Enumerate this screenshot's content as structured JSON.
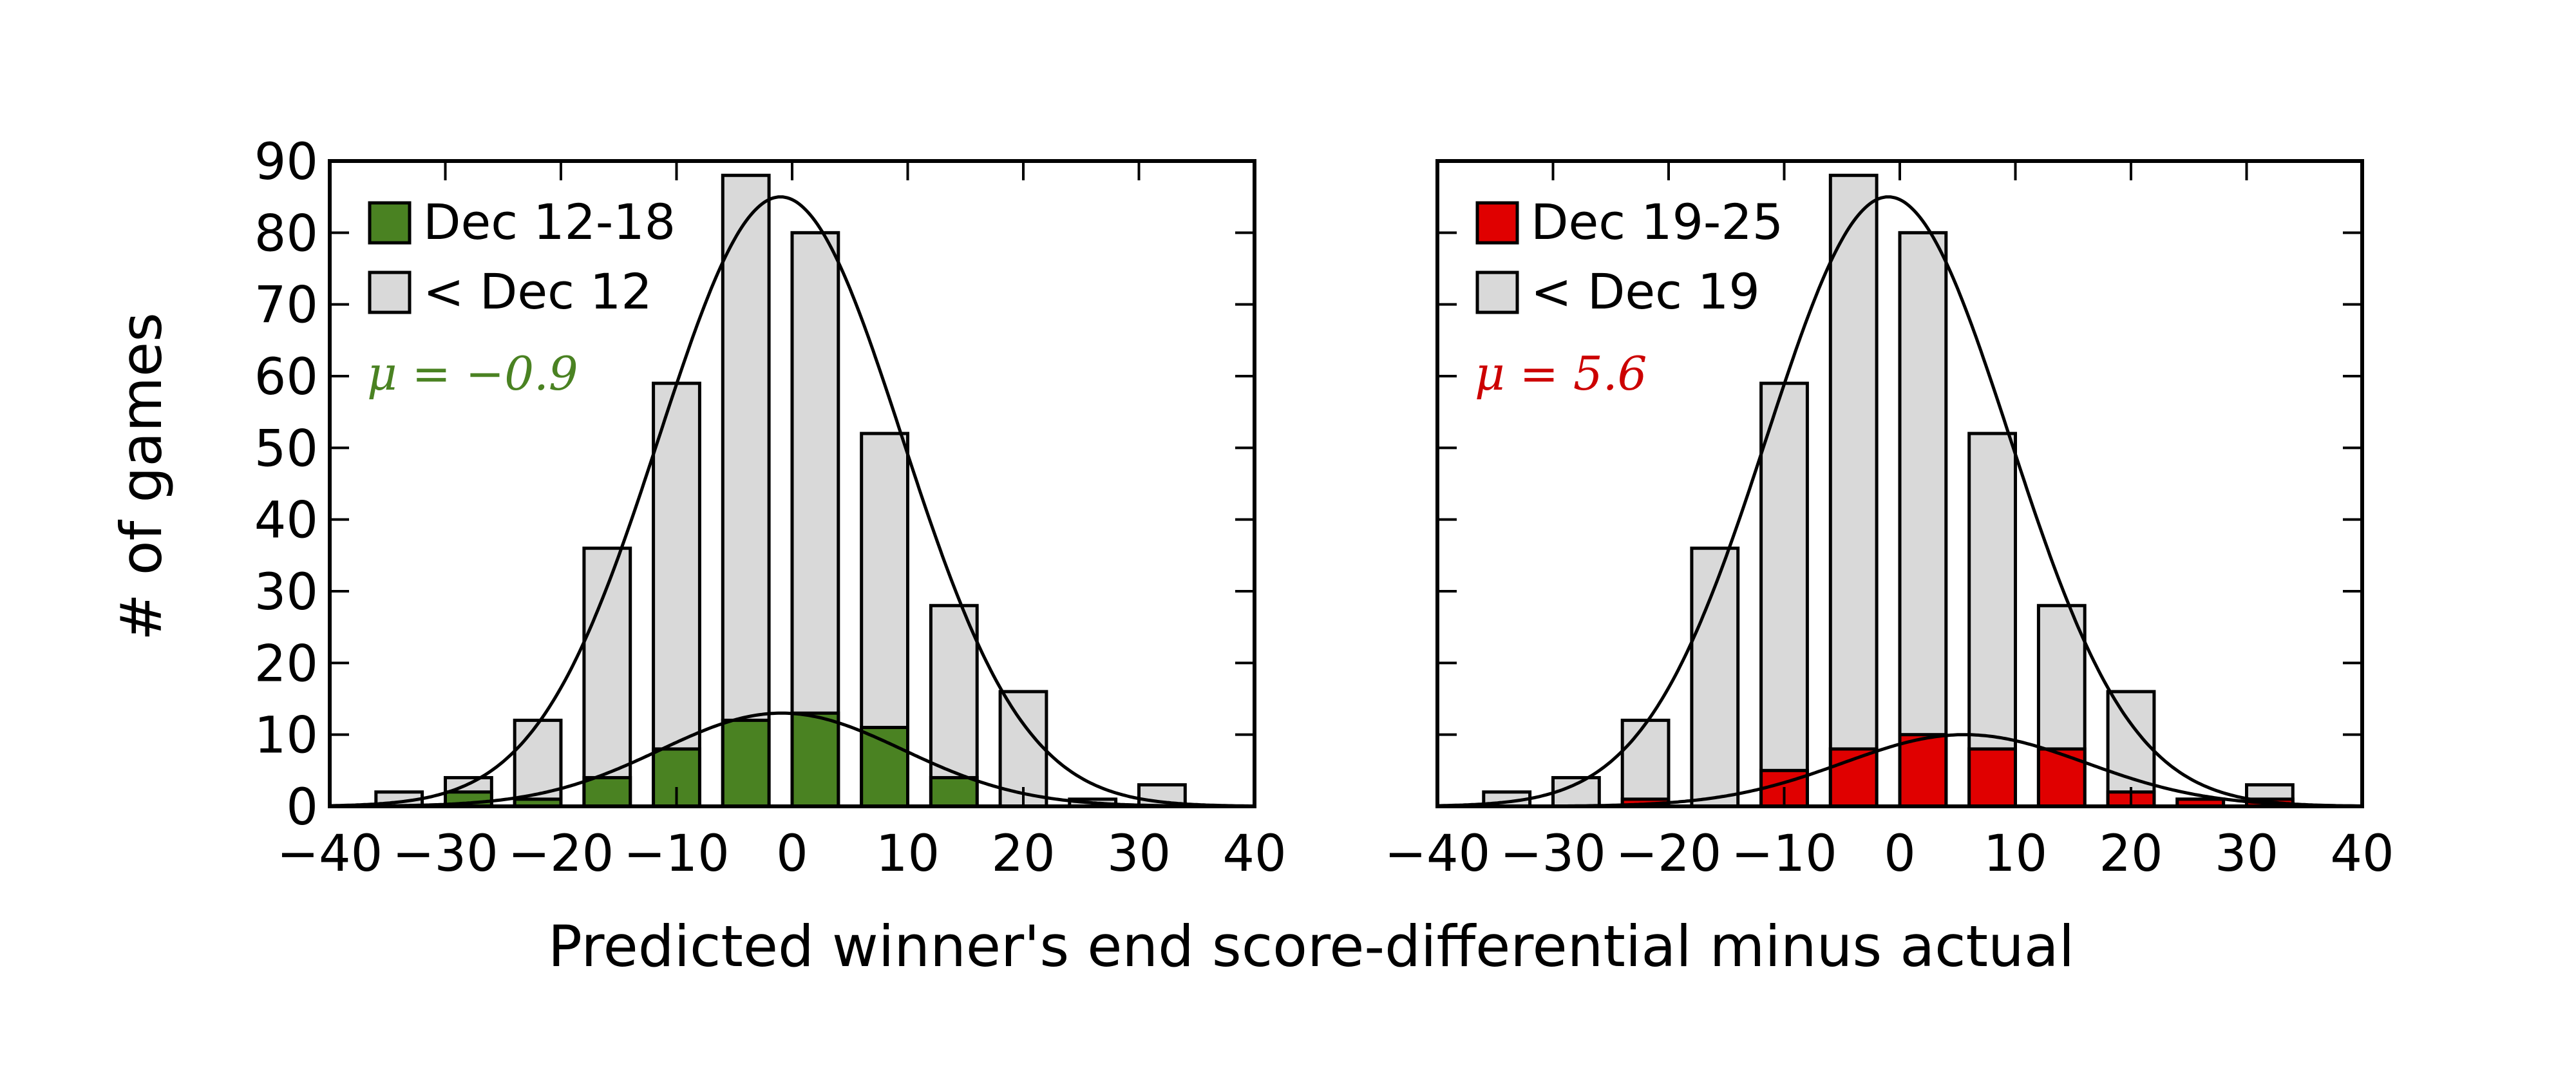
{
  "figure": {
    "ylabel": "# of games",
    "xlabel": "Predicted winner's end score-differential minus actual"
  },
  "chart_data": [
    {
      "type": "bar",
      "subtype": "overlaid histogram with fitted normal curves",
      "xlim": [
        -40,
        40
      ],
      "ylim": [
        0,
        90
      ],
      "xticks": [
        -40,
        -30,
        -20,
        -10,
        0,
        10,
        20,
        30,
        40
      ],
      "yticks": [
        0,
        10,
        20,
        30,
        40,
        50,
        60,
        70,
        80,
        90
      ],
      "bin_width": 6,
      "legend_position": "top-left",
      "series": [
        {
          "name": "< Dec 12",
          "color": "#d9d9d9",
          "x": [
            -34,
            -28,
            -22,
            -16,
            -10,
            -4,
            2,
            8,
            14,
            20,
            26,
            32
          ],
          "values": [
            2,
            4,
            12,
            36,
            59,
            88,
            80,
            52,
            28,
            16,
            1,
            3
          ]
        },
        {
          "name": "Dec 12-18",
          "color": "#4a8222",
          "x": [
            -34,
            -28,
            -22,
            -16,
            -10,
            -4,
            2,
            8,
            14,
            20,
            26,
            32
          ],
          "values": [
            0,
            2,
            1,
            4,
            8,
            12,
            13,
            11,
            4,
            0,
            0,
            0
          ]
        }
      ],
      "fit_curves": [
        {
          "series": "< Dec 12",
          "mean": -1,
          "sigma": 10.5,
          "peak": 85
        },
        {
          "series": "Dec 12-18",
          "mean": -0.9,
          "sigma": 10.5,
          "peak": 13
        }
      ],
      "annotation": {
        "text": "μ = −0.9",
        "color": "#4a8222"
      }
    },
    {
      "type": "bar",
      "subtype": "overlaid histogram with fitted normal curves",
      "xlim": [
        -40,
        40
      ],
      "ylim": [
        0,
        90
      ],
      "xticks": [
        -40,
        -30,
        -20,
        -10,
        0,
        10,
        20,
        30,
        40
      ],
      "yticks": [
        0,
        10,
        20,
        30,
        40,
        50,
        60,
        70,
        80,
        90
      ],
      "bin_width": 6,
      "legend_position": "top-left",
      "series": [
        {
          "name": "< Dec 19",
          "color": "#d9d9d9",
          "x": [
            -34,
            -28,
            -22,
            -16,
            -10,
            -4,
            2,
            8,
            14,
            20,
            26,
            32
          ],
          "values": [
            2,
            4,
            12,
            36,
            59,
            88,
            80,
            52,
            28,
            16,
            1,
            3
          ]
        },
        {
          "name": "Dec 19-25",
          "color": "#e00000",
          "x": [
            -34,
            -28,
            -22,
            -16,
            -10,
            -4,
            2,
            8,
            14,
            20,
            26,
            32
          ],
          "values": [
            0,
            0,
            1,
            0,
            5,
            8,
            10,
            8,
            8,
            2,
            1,
            1
          ]
        }
      ],
      "fit_curves": [
        {
          "series": "< Dec 19",
          "mean": -1,
          "sigma": 10.5,
          "peak": 85
        },
        {
          "series": "Dec 19-25",
          "mean": 5.6,
          "sigma": 10.5,
          "peak": 10
        }
      ],
      "annotation": {
        "text": "μ = 5.6",
        "color": "#cc0000"
      }
    }
  ]
}
